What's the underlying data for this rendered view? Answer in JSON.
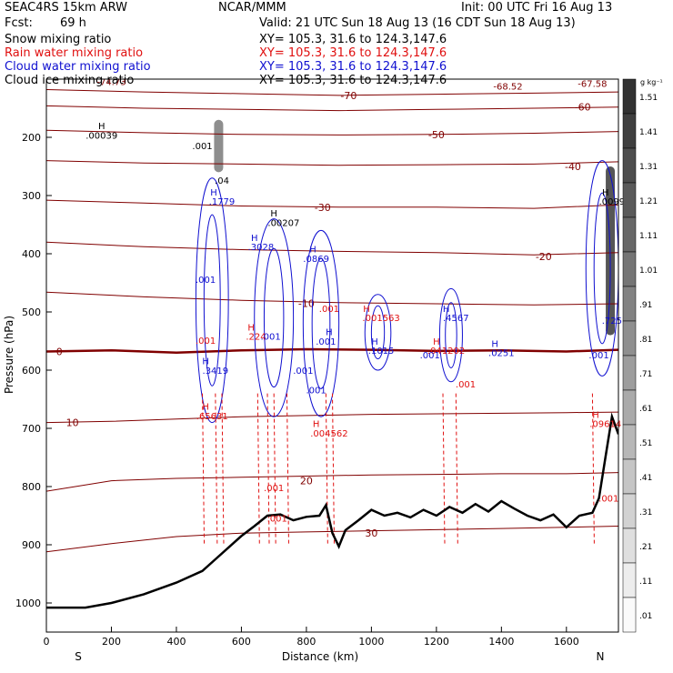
{
  "header": {
    "model": "SEAC4RS 15km ARW",
    "center": "NCAR/MMM",
    "init": "Init: 00 UTC Fri 16 Aug 13",
    "fcst_label": "Fcst:",
    "fcst_value": "69 h",
    "valid": "Valid: 21 UTC Sun 18 Aug 13 (16 CDT Sun 18 Aug 13)",
    "fields": [
      {
        "name": "Snow mixing ratio",
        "xy": "XY= 105.3, 31.6 to 124.3,147.6",
        "color": "#000000"
      },
      {
        "name": "Rain water mixing ratio",
        "xy": "XY= 105.3, 31.6 to 124.3,147.6",
        "color": "#e01010"
      },
      {
        "name": "Cloud water mixing ratio",
        "xy": "XY= 105.3, 31.6 to 124.3,147.6",
        "color": "#1010d0"
      },
      {
        "name": "Cloud ice mixing ratio",
        "xy": "XY= 105.3, 31.6 to 124.3,147.6",
        "color": "#000000"
      }
    ]
  },
  "chart_data": {
    "type": "cross-section",
    "xlabel": "Distance (km)",
    "ylabel": "Pressure (hPa)",
    "xlim": [
      0,
      1760
    ],
    "ylim": [
      1050,
      100
    ],
    "x_ticks": [
      0,
      200,
      400,
      600,
      800,
      1000,
      1200,
      1400,
      1600
    ],
    "y_ticks": [
      200,
      300,
      400,
      500,
      600,
      700,
      800,
      900,
      1000
    ],
    "x_end_labels": {
      "left": "S",
      "right": "N"
    },
    "colorbar": {
      "unit": "g kg⁻¹",
      "levels": [
        ".01",
        ".11",
        ".21",
        ".31",
        ".41",
        ".51",
        ".61",
        ".71",
        ".81",
        ".91",
        "1.01",
        "1.11",
        "1.21",
        "1.31",
        "1.41",
        "1.51"
      ]
    },
    "terrain": [
      [
        0,
        1008
      ],
      [
        120,
        1008
      ],
      [
        200,
        1000
      ],
      [
        300,
        985
      ],
      [
        400,
        965
      ],
      [
        480,
        945
      ],
      [
        520,
        925
      ],
      [
        560,
        905
      ],
      [
        600,
        885
      ],
      [
        640,
        868
      ],
      [
        680,
        850
      ],
      [
        720,
        848
      ],
      [
        760,
        858
      ],
      [
        800,
        852
      ],
      [
        840,
        850
      ],
      [
        860,
        832
      ],
      [
        880,
        880
      ],
      [
        900,
        903
      ],
      [
        920,
        875
      ],
      [
        960,
        858
      ],
      [
        1000,
        840
      ],
      [
        1040,
        850
      ],
      [
        1080,
        845
      ],
      [
        1120,
        853
      ],
      [
        1160,
        840
      ],
      [
        1200,
        850
      ],
      [
        1240,
        835
      ],
      [
        1280,
        845
      ],
      [
        1320,
        830
      ],
      [
        1360,
        843
      ],
      [
        1400,
        825
      ],
      [
        1440,
        838
      ],
      [
        1480,
        850
      ],
      [
        1520,
        858
      ],
      [
        1560,
        848
      ],
      [
        1600,
        870
      ],
      [
        1640,
        850
      ],
      [
        1680,
        845
      ],
      [
        1700,
        820
      ],
      [
        1720,
        750
      ],
      [
        1740,
        680
      ],
      [
        1760,
        710
      ]
    ],
    "isotherms": [
      {
        "label": "-70",
        "x": 930,
        "p": 128,
        "pts": [
          [
            0,
            118
          ],
          [
            300,
            122
          ],
          [
            600,
            125
          ],
          [
            900,
            128
          ],
          [
            1200,
            126
          ],
          [
            1500,
            124
          ],
          [
            1760,
            122
          ]
        ]
      },
      {
        "label": "-60",
        "x": 1650,
        "p": 148,
        "pts": [
          [
            0,
            146
          ],
          [
            300,
            150
          ],
          [
            600,
            152
          ],
          [
            900,
            154
          ],
          [
            1200,
            152
          ],
          [
            1500,
            150
          ],
          [
            1760,
            148
          ]
        ]
      },
      {
        "label": "-50",
        "x": 1200,
        "p": 195,
        "pts": [
          [
            0,
            188
          ],
          [
            300,
            192
          ],
          [
            600,
            195
          ],
          [
            900,
            196
          ],
          [
            1200,
            195
          ],
          [
            1500,
            193
          ],
          [
            1760,
            190
          ]
        ]
      },
      {
        "label": "-40",
        "x": 1620,
        "p": 250,
        "pts": [
          [
            0,
            240
          ],
          [
            300,
            244
          ],
          [
            600,
            246
          ],
          [
            900,
            248
          ],
          [
            1200,
            247
          ],
          [
            1500,
            246
          ],
          [
            1760,
            242
          ]
        ]
      },
      {
        "label": "-30",
        "x": 850,
        "p": 320,
        "pts": [
          [
            0,
            308
          ],
          [
            300,
            313
          ],
          [
            600,
            318
          ],
          [
            900,
            320
          ],
          [
            1200,
            320
          ],
          [
            1500,
            322
          ],
          [
            1760,
            316
          ]
        ]
      },
      {
        "label": "-20",
        "x": 1530,
        "p": 405,
        "pts": [
          [
            0,
            380
          ],
          [
            300,
            388
          ],
          [
            600,
            393
          ],
          [
            900,
            396
          ],
          [
            1200,
            398
          ],
          [
            1500,
            402
          ],
          [
            1760,
            398
          ]
        ]
      },
      {
        "label": "-10",
        "x": 800,
        "p": 485,
        "pts": [
          [
            0,
            466
          ],
          [
            300,
            474
          ],
          [
            600,
            480
          ],
          [
            900,
            484
          ],
          [
            1200,
            486
          ],
          [
            1500,
            488
          ],
          [
            1760,
            486
          ]
        ]
      },
      {
        "label": "0",
        "x": 40,
        "p": 568,
        "pts": [
          [
            0,
            568
          ],
          [
            200,
            566
          ],
          [
            400,
            570
          ],
          [
            600,
            566
          ],
          [
            800,
            564
          ],
          [
            1000,
            565
          ],
          [
            1200,
            567
          ],
          [
            1400,
            566
          ],
          [
            1600,
            568
          ],
          [
            1760,
            565
          ]
        ]
      },
      {
        "label": "10",
        "x": 80,
        "p": 690,
        "pts": [
          [
            0,
            690
          ],
          [
            200,
            688
          ],
          [
            400,
            684
          ],
          [
            600,
            680
          ],
          [
            800,
            678
          ],
          [
            1000,
            676
          ],
          [
            1200,
            675
          ],
          [
            1400,
            674
          ],
          [
            1600,
            673
          ],
          [
            1760,
            672
          ]
        ]
      },
      {
        "label": "20",
        "x": 800,
        "p": 790,
        "pts": [
          [
            0,
            808
          ],
          [
            200,
            790
          ],
          [
            400,
            786
          ],
          [
            600,
            784
          ],
          [
            800,
            782
          ],
          [
            1000,
            780
          ],
          [
            1200,
            779
          ],
          [
            1400,
            778
          ],
          [
            1600,
            778
          ],
          [
            1760,
            776
          ]
        ]
      },
      {
        "label": "30",
        "x": 1000,
        "p": 880,
        "pts": [
          [
            0,
            912
          ],
          [
            200,
            898
          ],
          [
            400,
            886
          ],
          [
            600,
            880
          ],
          [
            800,
            878
          ],
          [
            1000,
            876
          ],
          [
            1200,
            874
          ],
          [
            1400,
            872
          ],
          [
            1600,
            870
          ],
          [
            1760,
            868
          ]
        ]
      }
    ],
    "cloud_water_cells": [
      {
        "x0": 460,
        "x1": 560,
        "p0": 270,
        "p1": 690
      },
      {
        "x0": 640,
        "x1": 760,
        "p0": 340,
        "p1": 680
      },
      {
        "x0": 790,
        "x1": 900,
        "p0": 360,
        "p1": 680
      },
      {
        "x0": 980,
        "x1": 1060,
        "p0": 470,
        "p1": 600
      },
      {
        "x0": 1210,
        "x1": 1280,
        "p0": 460,
        "p1": 620
      },
      {
        "x0": 1660,
        "x1": 1760,
        "p0": 240,
        "p1": 610
      }
    ],
    "rain_columns": [
      480,
      520,
      540,
      650,
      680,
      700,
      740,
      860,
      880,
      1220,
      1260,
      1680
    ],
    "ice_cores": [
      {
        "x": 530,
        "p0": 170,
        "p1": 260,
        "level": 0.55
      },
      {
        "x": 1735,
        "p0": 250,
        "p1": 540,
        "level": 0.9
      }
    ],
    "annotations": [
      {
        "text": "-74.73",
        "x": 200,
        "p": 110,
        "color": "#800000"
      },
      {
        "text": "-68.52",
        "x": 1420,
        "p": 118,
        "color": "#800000"
      },
      {
        "text": "-67.58",
        "x": 1680,
        "p": 113,
        "color": "#800000"
      },
      {
        "text": "H",
        "x": 170,
        "p": 186,
        "color": "#000000"
      },
      {
        "text": ".00039",
        "x": 170,
        "p": 202,
        "color": "#000000"
      },
      {
        "text": ".001",
        "x": 480,
        "p": 220,
        "color": "#000000"
      },
      {
        "text": ".04",
        "x": 540,
        "p": 280,
        "color": "#000000"
      },
      {
        "text": "H",
        "x": 515,
        "p": 300,
        "color": "#1010d0"
      },
      {
        "text": ".1779",
        "x": 540,
        "p": 316,
        "color": "#1010d0"
      },
      {
        "text": "H",
        "x": 700,
        "p": 336,
        "color": "#000000"
      },
      {
        "text": ".00207",
        "x": 730,
        "p": 352,
        "color": "#000000"
      },
      {
        "text": "H",
        "x": 640,
        "p": 378,
        "color": "#1010d0"
      },
      {
        "text": ".3028",
        "x": 660,
        "p": 394,
        "color": "#1010d0"
      },
      {
        "text": "H",
        "x": 820,
        "p": 398,
        "color": "#1010d0"
      },
      {
        "text": ".0869",
        "x": 830,
        "p": 414,
        "color": "#1010d0"
      },
      {
        "text": "H",
        "x": 1720,
        "p": 300,
        "color": "#000000"
      },
      {
        "text": ".0099",
        "x": 1740,
        "p": 316,
        "color": "#000000"
      },
      {
        "text": ".001",
        "x": 490,
        "p": 450,
        "color": "#1010d0"
      },
      {
        "text": ".001",
        "x": 870,
        "p": 500,
        "color": "#e01010"
      },
      {
        "text": "H",
        "x": 985,
        "p": 500,
        "color": "#e01010"
      },
      {
        "text": ".001563",
        "x": 1030,
        "p": 516,
        "color": "#e01010"
      },
      {
        "text": "H",
        "x": 1230,
        "p": 500,
        "color": "#1010d0"
      },
      {
        "text": ".4567",
        "x": 1260,
        "p": 516,
        "color": "#1010d0"
      },
      {
        "text": "H",
        "x": 630,
        "p": 532,
        "color": "#e01010"
      },
      {
        "text": ".224",
        "x": 645,
        "p": 548,
        "color": "#e01010"
      },
      {
        "text": ".001",
        "x": 690,
        "p": 548,
        "color": "#1010d0"
      },
      {
        "text": ".001",
        "x": 490,
        "p": 555,
        "color": "#e01010"
      },
      {
        "text": "H",
        "x": 870,
        "p": 540,
        "color": "#1010d0"
      },
      {
        "text": ".001",
        "x": 860,
        "p": 556,
        "color": "#1010d0"
      },
      {
        "text": "H",
        "x": 1010,
        "p": 556,
        "color": "#1010d0"
      },
      {
        "text": ".1015",
        "x": 1030,
        "p": 572,
        "color": "#1010d0"
      },
      {
        "text": "H",
        "x": 1200,
        "p": 556,
        "color": "#e01010"
      },
      {
        "text": ".041202",
        "x": 1230,
        "p": 572,
        "color": "#e01010"
      },
      {
        "text": "H",
        "x": 1380,
        "p": 560,
        "color": "#1010d0"
      },
      {
        "text": ".0251",
        "x": 1400,
        "p": 576,
        "color": "#1010d0"
      },
      {
        "text": ".001",
        "x": 1180,
        "p": 580,
        "color": "#1010d0"
      },
      {
        "text": ".725",
        "x": 1740,
        "p": 520,
        "color": "#1010d0"
      },
      {
        "text": ".001",
        "x": 1700,
        "p": 580,
        "color": "#1010d0"
      },
      {
        "text": "H",
        "x": 490,
        "p": 590,
        "color": "#1010d0"
      },
      {
        "text": ".3419",
        "x": 520,
        "p": 606,
        "color": "#1010d0"
      },
      {
        "text": ".001",
        "x": 790,
        "p": 606,
        "color": "#1010d0"
      },
      {
        "text": ".001",
        "x": 830,
        "p": 640,
        "color": "#1010d0"
      },
      {
        "text": ".001",
        "x": 1290,
        "p": 630,
        "color": "#e01010"
      },
      {
        "text": "H",
        "x": 490,
        "p": 668,
        "color": "#e01010"
      },
      {
        "text": ".65631",
        "x": 510,
        "p": 684,
        "color": "#e01010"
      },
      {
        "text": "H",
        "x": 830,
        "p": 698,
        "color": "#e01010"
      },
      {
        "text": ".004562",
        "x": 870,
        "p": 714,
        "color": "#e01010"
      },
      {
        "text": "H",
        "x": 1690,
        "p": 682,
        "color": "#e01010"
      },
      {
        "text": ".09614",
        "x": 1720,
        "p": 698,
        "color": "#e01010"
      },
      {
        "text": ".001",
        "x": 700,
        "p": 808,
        "color": "#e01010"
      },
      {
        "text": ".001",
        "x": 1730,
        "p": 826,
        "color": "#e01010"
      },
      {
        "text": ".001",
        "x": 710,
        "p": 860,
        "color": "#e01010"
      }
    ]
  }
}
